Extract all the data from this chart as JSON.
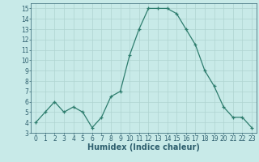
{
  "x": [
    0,
    1,
    2,
    3,
    4,
    5,
    6,
    7,
    8,
    9,
    10,
    11,
    12,
    13,
    14,
    15,
    16,
    17,
    18,
    19,
    20,
    21,
    22,
    23
  ],
  "y": [
    4,
    5,
    6,
    5,
    5.5,
    5,
    3.5,
    4.5,
    6.5,
    7,
    10.5,
    13,
    15,
    15,
    15,
    14.5,
    13,
    11.5,
    9,
    7.5,
    5.5,
    4.5,
    4.5,
    3.5
  ],
  "line_color": "#2e7d6e",
  "marker": "+",
  "background_color": "#c8eae8",
  "grid_color": "#afd4d0",
  "xlabel": "Humidex (Indice chaleur)",
  "ylim": [
    3,
    15.5
  ],
  "xlim": [
    -0.5,
    23.5
  ],
  "yticks": [
    3,
    4,
    5,
    6,
    7,
    8,
    9,
    10,
    11,
    12,
    13,
    14,
    15
  ],
  "xticks": [
    0,
    1,
    2,
    3,
    4,
    5,
    6,
    7,
    8,
    9,
    10,
    11,
    12,
    13,
    14,
    15,
    16,
    17,
    18,
    19,
    20,
    21,
    22,
    23
  ],
  "tick_labelsize": 5.5,
  "xlabel_fontsize": 7,
  "label_color": "#2e5f6e"
}
